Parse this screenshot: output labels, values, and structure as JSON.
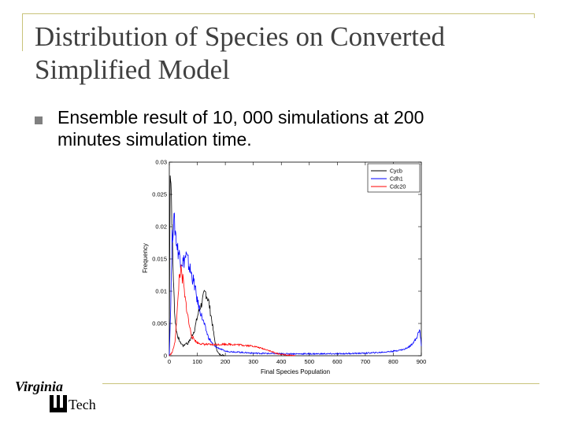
{
  "slide": {
    "title_line1": "Distribution of Species on Converted",
    "title_line2": "Simplified Model",
    "bullet_text_line1": "Ensemble result of 10, 000 simulations at 200",
    "bullet_text_line2": "minutes simulation time.",
    "logo_word1": "Virginia",
    "logo_word2": "Tech"
  },
  "colors": {
    "frame": "#c8c37a",
    "cycb": "#000000",
    "cdh1": "#0000ff",
    "cdc20": "#ff0000"
  },
  "chart_data": {
    "type": "line",
    "title": "",
    "xlabel": "Final Species Population",
    "ylabel": "Frequency",
    "xlim": [
      0,
      900
    ],
    "ylim": [
      0,
      0.03
    ],
    "xticks": [
      "0",
      "100",
      "200",
      "300",
      "400",
      "500",
      "600",
      "700",
      "800",
      "900"
    ],
    "yticks": [
      "0",
      "0.005",
      "0.01",
      "0.015",
      "0.02",
      "0.025",
      "0.03"
    ],
    "legend_position": "top-right",
    "grid": false,
    "series": [
      {
        "name": "Cycb",
        "color": "#000000",
        "x": [
          0,
          3,
          6,
          9,
          12,
          16,
          20,
          25,
          30,
          35,
          40,
          45,
          50,
          55,
          60,
          65,
          70,
          75,
          80,
          85,
          90,
          95,
          100,
          105,
          110,
          115,
          120,
          125,
          130,
          135,
          140,
          145,
          150,
          155,
          160,
          165,
          170,
          175,
          180,
          190,
          200
        ],
        "y": [
          0.0,
          0.03,
          0.027,
          0.022,
          0.016,
          0.01,
          0.006,
          0.004,
          0.003,
          0.0025,
          0.002,
          0.0018,
          0.0015,
          0.0017,
          0.002,
          0.0018,
          0.0022,
          0.0025,
          0.003,
          0.0035,
          0.004,
          0.005,
          0.006,
          0.0068,
          0.0075,
          0.008,
          0.0088,
          0.0095,
          0.0098,
          0.0092,
          0.0085,
          0.0072,
          0.006,
          0.0045,
          0.003,
          0.0018,
          0.0009,
          0.0004,
          0.0002,
          0.0001,
          0.0
        ]
      },
      {
        "name": "Cdh1",
        "color": "#0000ff",
        "x": [
          0,
          5,
          10,
          15,
          20,
          25,
          30,
          40,
          50,
          60,
          70,
          80,
          90,
          100,
          120,
          140,
          160,
          200,
          300,
          400,
          500,
          600,
          700,
          750,
          800,
          840,
          860,
          870,
          880,
          890,
          895,
          900
        ],
        "y": [
          0.0,
          0.008,
          0.018,
          0.021,
          0.02,
          0.018,
          0.0165,
          0.015,
          0.0145,
          0.0155,
          0.014,
          0.0125,
          0.011,
          0.0085,
          0.0055,
          0.0028,
          0.0015,
          0.0007,
          0.0004,
          0.0003,
          0.0003,
          0.0003,
          0.0004,
          0.0005,
          0.0007,
          0.001,
          0.0015,
          0.002,
          0.0025,
          0.0035,
          0.004,
          0.0015
        ]
      },
      {
        "name": "Cdc20",
        "color": "#ff0000",
        "x": [
          0,
          10,
          20,
          30,
          35,
          40,
          45,
          50,
          55,
          60,
          65,
          70,
          75,
          80,
          90,
          100,
          120,
          150,
          200,
          250,
          300,
          350,
          380,
          400,
          420,
          450
        ],
        "y": [
          0.0,
          0.0005,
          0.002,
          0.008,
          0.012,
          0.0135,
          0.012,
          0.0115,
          0.009,
          0.008,
          0.0065,
          0.005,
          0.004,
          0.003,
          0.0025,
          0.002,
          0.0018,
          0.0017,
          0.0018,
          0.0017,
          0.0015,
          0.0009,
          0.0004,
          0.0002,
          0.0001,
          0.0
        ]
      }
    ]
  }
}
